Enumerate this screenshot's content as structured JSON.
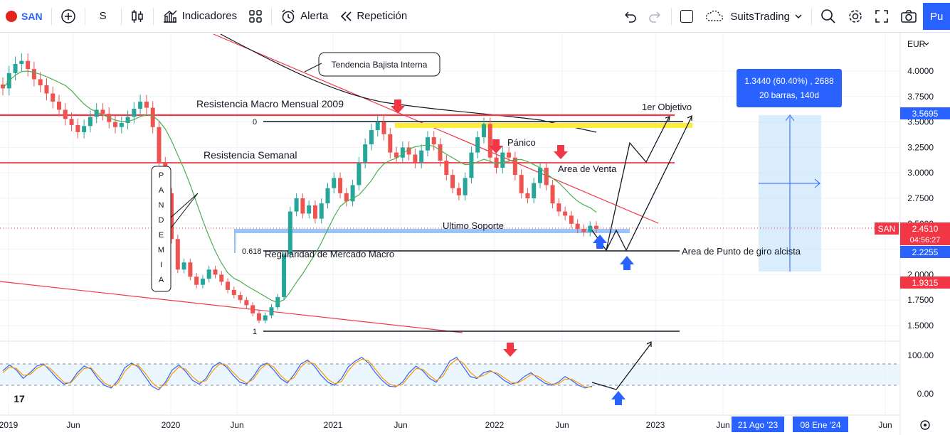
{
  "toolbar": {
    "symbol": "SAN",
    "interval": "S",
    "indicators_label": "Indicadores",
    "alert_label": "Alerta",
    "replay_label": "Repetición",
    "layout_name": "SuitsTrading",
    "publish_label": "Pu"
  },
  "colors": {
    "up": "#26a69a",
    "down": "#ef5350",
    "accent": "#2962ff",
    "resistance": "#f23645",
    "ma": "#4caf50",
    "support": "#90bff9",
    "target": "#ffeb3b"
  },
  "chart_data": [
    {
      "type": "candlestick",
      "symbol": "SAN",
      "price_currency": "EUR",
      "yticks": [
        "4.0000",
        "3.7500",
        "3.5000",
        "3.2500",
        "3.0000",
        "2.7500",
        "2.5000",
        "2.2500",
        "2.0000",
        "1.7500",
        "1.5000"
      ],
      "ylim": [
        1.45,
        4.35
      ],
      "xticks": [
        "2019",
        "Jun",
        "2020",
        "Jun",
        "2021",
        "Jun",
        "2022",
        "Jun",
        "2023",
        "Jun",
        "Jun"
      ],
      "price_labels": [
        {
          "text": "3.5695",
          "kind": "level"
        },
        {
          "text": "2.4510",
          "kind": "last"
        },
        {
          "text": "04:56:27",
          "kind": "countdown"
        },
        {
          "text": "2.2255",
          "kind": "level"
        },
        {
          "text": "1.9315",
          "kind": "level"
        }
      ],
      "last_price_tag": "SAN",
      "horizontal_levels": [
        {
          "label": "Resistencia Macro Mensual 2009",
          "value": 3.56
        },
        {
          "label": "Resistencia Semanal",
          "value": 3.1
        },
        {
          "label": "Ultimo Soporte",
          "value": 2.42
        },
        {
          "label": "Regularidad de Mercado Macro",
          "value": 2.22
        },
        {
          "label": "Area de Punto de giro alcista",
          "value": 2.22
        }
      ],
      "fib_labels": [
        "0",
        "0.618",
        "1"
      ],
      "annotations": [
        "Tendencia Bajista Interna",
        "1er Objetivo",
        "Pánico",
        "Area de Venta",
        "PANDEMIA"
      ],
      "measure_box": {
        "line1": "1.3440 (60.40%) , 2688",
        "line2": "20 barras, 140d"
      },
      "date_range_labels": [
        "21 Ago '23",
        "08 Ene '24"
      ],
      "candles": [
        3.83,
        3.98,
        4.07,
        4.1,
        4.02,
        3.92,
        3.86,
        3.78,
        3.7,
        3.62,
        3.53,
        3.47,
        3.4,
        3.46,
        3.55,
        3.62,
        3.58,
        3.5,
        3.45,
        3.49,
        3.55,
        3.63,
        3.7,
        3.64,
        3.45,
        3.1,
        2.8,
        2.35,
        2.05,
        2.12,
        1.98,
        1.9,
        1.96,
        2.05,
        2.0,
        1.93,
        1.85,
        1.8,
        1.75,
        1.7,
        1.62,
        1.55,
        1.6,
        1.68,
        1.78,
        2.2,
        2.62,
        2.75,
        2.6,
        2.68,
        2.55,
        2.7,
        2.85,
        2.95,
        2.8,
        2.72,
        2.88,
        3.1,
        3.28,
        3.42,
        3.5,
        3.38,
        3.2,
        3.15,
        3.25,
        3.18,
        3.1,
        3.22,
        3.35,
        3.28,
        3.12,
        2.98,
        2.85,
        2.78,
        2.95,
        3.2,
        3.35,
        3.48,
        3.15,
        3.05,
        3.2,
        3.15,
        2.98,
        2.8,
        2.75,
        2.9,
        3.05,
        2.88,
        2.7,
        2.62,
        2.58,
        2.5,
        2.45,
        2.42,
        2.48,
        2.45
      ],
      "moving_average_period_label": "",
      "axis_label": "EUR"
    },
    {
      "type": "line",
      "name": "oscillator",
      "yticks": [
        "100.00",
        "0.00"
      ],
      "ylim": [
        -30,
        115
      ],
      "bands": [
        80,
        20
      ],
      "series": [
        {
          "values": [
            60,
            75,
            62,
            40,
            55,
            72,
            78,
            60,
            40,
            25,
            30,
            55,
            72,
            65,
            40,
            22,
            15,
            35,
            68,
            80,
            70,
            45,
            20,
            10,
            30,
            62,
            75,
            58,
            35,
            25,
            40,
            70,
            82,
            70,
            48,
            30,
            25,
            45,
            72,
            80,
            62,
            40,
            28,
            50,
            78,
            88,
            72,
            48,
            30,
            22,
            40,
            70,
            85,
            95,
            80,
            55,
            35,
            20,
            18,
            30,
            55,
            72,
            60,
            40,
            30,
            55,
            85,
            95,
            70,
            45,
            40,
            55,
            60,
            50,
            35,
            25,
            30,
            45,
            55,
            40,
            28,
            22,
            30,
            45,
            35,
            22,
            15,
            20
          ]
        },
        {
          "values": [
            55,
            70,
            66,
            48,
            50,
            66,
            75,
            66,
            48,
            30,
            28,
            48,
            66,
            68,
            48,
            28,
            18,
            28,
            58,
            76,
            74,
            54,
            30,
            15,
            24,
            52,
            70,
            64,
            44,
            30,
            34,
            60,
            78,
            75,
            56,
            38,
            28,
            38,
            64,
            78,
            70,
            48,
            32,
            42,
            70,
            84,
            78,
            58,
            38,
            26,
            32,
            60,
            80,
            90,
            86,
            64,
            42,
            26,
            20,
            24,
            46,
            66,
            64,
            48,
            34,
            46,
            76,
            90,
            80,
            56,
            42,
            48,
            58,
            54,
            42,
            30,
            28,
            38,
            50,
            46,
            34,
            25,
            26,
            38,
            38,
            28,
            18,
            18
          ]
        }
      ]
    }
  ]
}
